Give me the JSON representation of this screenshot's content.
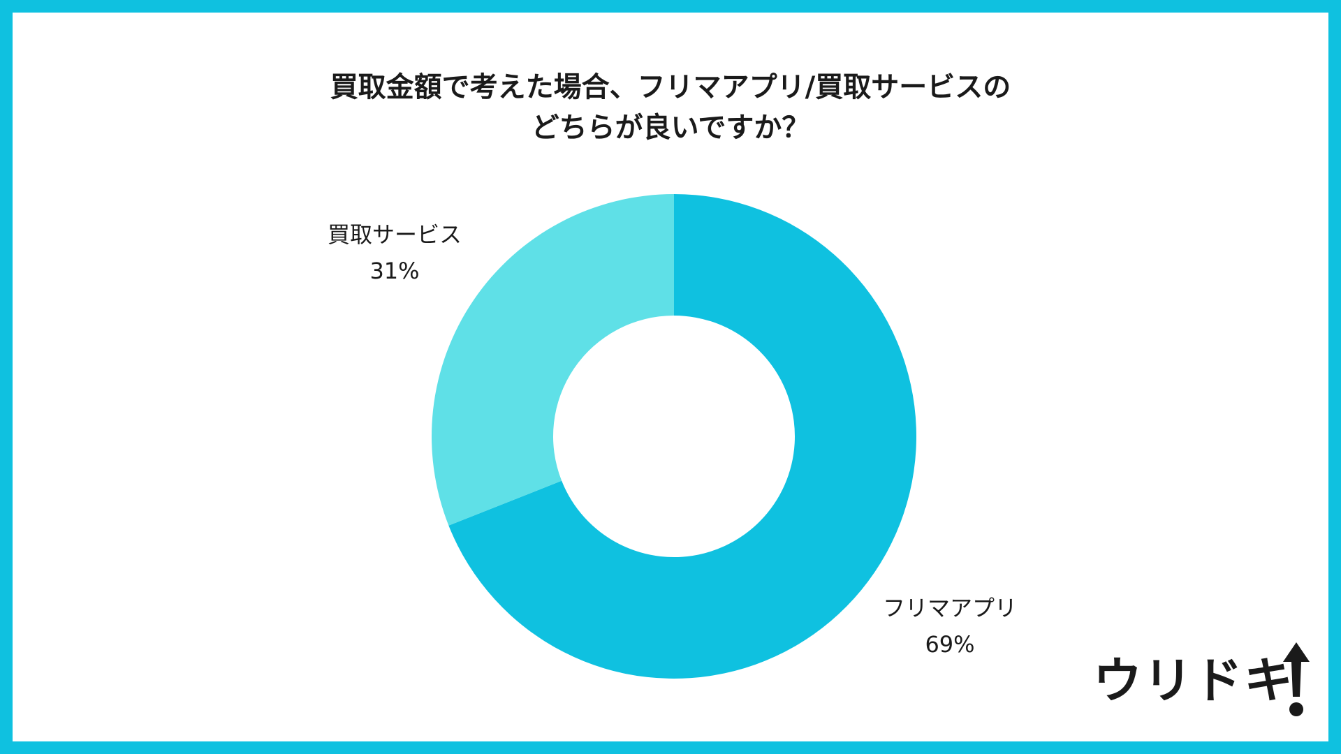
{
  "chart_data": {
    "type": "pie",
    "title": "買取金額で考えた場合、フリマアプリ/買取サービスのどちらが良いですか？",
    "title_lines": [
      "買取金額で考えた場合、フリマアプリ/買取サービスの",
      "どちらが良いですか？"
    ],
    "donut": true,
    "slices": [
      {
        "label": "フリマアプリ",
        "value": 69,
        "value_label": "69%",
        "color": "#0fc1e0"
      },
      {
        "label": "買取サービス",
        "value": 31,
        "value_label": "31%",
        "color": "#5fe0e7"
      }
    ],
    "legend": "none"
  },
  "colors": {
    "border": "#0fc1e0",
    "background": "#ffffff",
    "text": "#1a1a1a"
  },
  "logo": {
    "text": "ウリドキ",
    "icon": "up-arrow-exclamation-icon"
  }
}
